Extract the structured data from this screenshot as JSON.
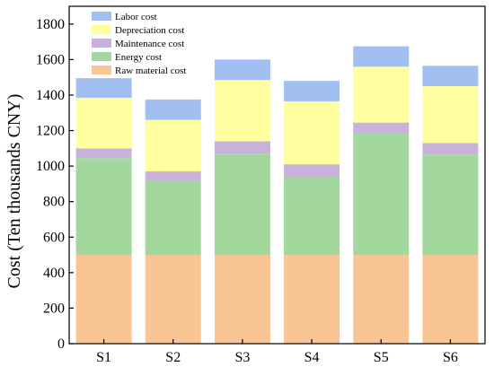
{
  "chart_data": {
    "type": "bar",
    "stacked": true,
    "categories": [
      "S1",
      "S2",
      "S3",
      "S4",
      "S5",
      "S6"
    ],
    "series": [
      {
        "name": "Raw material cost",
        "color": "#F9C595",
        "values": [
          500,
          500,
          500,
          500,
          500,
          500
        ]
      },
      {
        "name": "Energy cost",
        "color": "#A2D89E",
        "values": [
          545,
          415,
          570,
          440,
          685,
          565
        ]
      },
      {
        "name": "Maintenance cost",
        "color": "#C8B2DA",
        "values": [
          55,
          55,
          70,
          70,
          60,
          65
        ]
      },
      {
        "name": "Depreciation cost",
        "color": "#FFFF9F",
        "values": [
          285,
          290,
          345,
          355,
          315,
          320
        ]
      },
      {
        "name": "Labor cost",
        "color": "#A2BFF2",
        "values": [
          110,
          115,
          115,
          115,
          115,
          115
        ]
      }
    ],
    "title": "",
    "xlabel": "",
    "ylabel": "Cost (Ten thousands CNY)",
    "ylim": [
      0,
      1900
    ],
    "yticks": [
      0,
      200,
      400,
      600,
      800,
      1000,
      1200,
      1400,
      1600,
      1800
    ],
    "grid": false,
    "legend_position": "top-left"
  }
}
